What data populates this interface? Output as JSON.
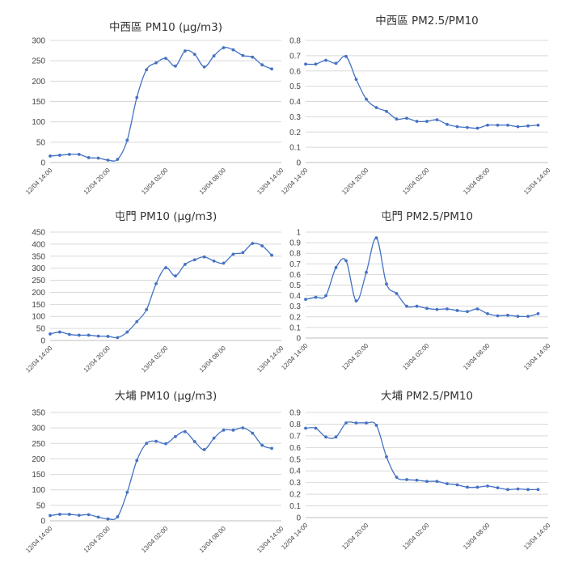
{
  "chart_data": [
    {
      "type": "line",
      "title": "中西區 PM10 (µg/m3)",
      "ylim": [
        0,
        300
      ],
      "yticks": [
        0,
        50,
        100,
        150,
        200,
        250,
        300
      ],
      "xlim": [
        0,
        24
      ],
      "xticks": [
        {
          "x": 0,
          "label": "12/04 14:00"
        },
        {
          "x": 6,
          "label": "12/04 20:00"
        },
        {
          "x": 12,
          "label": "13/04 02:00"
        },
        {
          "x": 18,
          "label": "13/04 08:00"
        },
        {
          "x": 24,
          "label": "13/04 14:00"
        }
      ],
      "grid": true,
      "color": "#4472c4",
      "x": [
        0,
        1,
        2,
        3,
        4,
        5,
        6,
        7,
        8,
        9,
        10,
        11,
        12,
        13,
        14,
        15,
        16,
        17,
        18,
        19,
        20,
        21,
        22,
        23
      ],
      "values": [
        16,
        18,
        20,
        20,
        12,
        11,
        6,
        8,
        55,
        160,
        228,
        245,
        256,
        237,
        274,
        266,
        235,
        262,
        282,
        277,
        263,
        259,
        240,
        230
      ]
    },
    {
      "type": "line",
      "title": "中西區 PM2.5/PM10",
      "ylim": [
        0,
        0.8
      ],
      "yticks": [
        0,
        0.1,
        0.2,
        0.3,
        0.4,
        0.5,
        0.6,
        0.7,
        0.8
      ],
      "xlim": [
        0,
        24
      ],
      "xticks": [
        {
          "x": 0,
          "label": "12/04 14:00"
        },
        {
          "x": 6,
          "label": "12/04 20:00"
        },
        {
          "x": 12,
          "label": "13/04 02:00"
        },
        {
          "x": 18,
          "label": "13/04 08:00"
        },
        {
          "x": 24,
          "label": "13/04 14:00"
        }
      ],
      "grid": true,
      "color": "#4472c4",
      "x": [
        0,
        1,
        2,
        3,
        4,
        5,
        6,
        7,
        8,
        9,
        10,
        11,
        12,
        13,
        14,
        15,
        16,
        17,
        18,
        19,
        20,
        21,
        22,
        23
      ],
      "values": [
        0.645,
        0.645,
        0.67,
        0.65,
        0.695,
        0.545,
        0.415,
        0.36,
        0.335,
        0.285,
        0.29,
        0.27,
        0.27,
        0.28,
        0.25,
        0.235,
        0.23,
        0.225,
        0.245,
        0.245,
        0.245,
        0.235,
        0.24,
        0.245
      ]
    },
    {
      "type": "line",
      "title": "屯門 PM10 (µg/m3)",
      "ylim": [
        0,
        450
      ],
      "yticks": [
        0,
        50,
        100,
        150,
        200,
        250,
        300,
        350,
        400,
        450
      ],
      "xlim": [
        0,
        24
      ],
      "xticks": [
        {
          "x": 0,
          "label": "12/04 14:00"
        },
        {
          "x": 6,
          "label": "12/04 20:00"
        },
        {
          "x": 12,
          "label": "13/04 02:00"
        },
        {
          "x": 18,
          "label": "13/04 08:00"
        },
        {
          "x": 24,
          "label": "13/04 14:00"
        }
      ],
      "grid": true,
      "color": "#4472c4",
      "x": [
        0,
        1,
        2,
        3,
        4,
        5,
        6,
        7,
        8,
        9,
        10,
        11,
        12,
        13,
        14,
        15,
        16,
        17,
        18,
        19,
        20,
        21,
        22,
        23
      ],
      "values": [
        27,
        35,
        25,
        22,
        22,
        18,
        17,
        12,
        35,
        78,
        128,
        236,
        302,
        268,
        316,
        335,
        347,
        330,
        321,
        358,
        365,
        403,
        393,
        354
      ]
    },
    {
      "type": "line",
      "title": "屯門 PM2.5/PM10",
      "ylim": [
        0,
        1
      ],
      "yticks": [
        0,
        0.1,
        0.2,
        0.3,
        0.4,
        0.5,
        0.6,
        0.7,
        0.8,
        0.9,
        1
      ],
      "xlim": [
        0,
        24
      ],
      "xticks": [
        {
          "x": 0,
          "label": "12/04 14:00"
        },
        {
          "x": 6,
          "label": "12/04 20:00"
        },
        {
          "x": 12,
          "label": "13/04 02:00"
        },
        {
          "x": 18,
          "label": "13/04 08:00"
        },
        {
          "x": 24,
          "label": "13/04 14:00"
        }
      ],
      "grid": true,
      "color": "#4472c4",
      "x": [
        0,
        1,
        2,
        3,
        4,
        5,
        6,
        7,
        8,
        9,
        10,
        11,
        12,
        13,
        14,
        15,
        16,
        17,
        18,
        19,
        20,
        21,
        22,
        23
      ],
      "values": [
        0.365,
        0.385,
        0.4,
        0.665,
        0.73,
        0.35,
        0.62,
        0.945,
        0.51,
        0.42,
        0.3,
        0.3,
        0.28,
        0.27,
        0.275,
        0.26,
        0.25,
        0.275,
        0.23,
        0.21,
        0.215,
        0.205,
        0.205,
        0.23
      ]
    },
    {
      "type": "line",
      "title": "大埔 PM10 (µg/m3)",
      "ylim": [
        0,
        350
      ],
      "yticks": [
        0,
        50,
        100,
        150,
        200,
        250,
        300,
        350
      ],
      "xlim": [
        0,
        24
      ],
      "xticks": [
        {
          "x": 0,
          "label": "12/04 14:00"
        },
        {
          "x": 6,
          "label": "12/04 20:00"
        },
        {
          "x": 12,
          "label": "13/04 02:00"
        },
        {
          "x": 18,
          "label": "13/04 08:00"
        },
        {
          "x": 24,
          "label": "13/04 14:00"
        }
      ],
      "grid": true,
      "color": "#4472c4",
      "x": [
        0,
        1,
        2,
        3,
        4,
        5,
        6,
        7,
        8,
        9,
        10,
        11,
        12,
        13,
        14,
        15,
        16,
        17,
        18,
        19,
        20,
        21,
        22,
        23
      ],
      "values": [
        17,
        21,
        21,
        18,
        20,
        12,
        6,
        13,
        92,
        195,
        250,
        257,
        249,
        272,
        288,
        256,
        230,
        267,
        293,
        293,
        300,
        283,
        244,
        234
      ]
    },
    {
      "type": "line",
      "title": "大埔 PM2.5/PM10",
      "ylim": [
        0,
        0.9
      ],
      "yticks": [
        0,
        0.1,
        0.2,
        0.3,
        0.4,
        0.5,
        0.6,
        0.7,
        0.8,
        0.9
      ],
      "xlim": [
        0,
        24
      ],
      "xticks": [
        {
          "x": 0,
          "label": "12/04 14:00"
        },
        {
          "x": 6,
          "label": "12/04 20:00"
        },
        {
          "x": 12,
          "label": "13/04 02:00"
        },
        {
          "x": 18,
          "label": "13/04 08:00"
        },
        {
          "x": 24,
          "label": "13/04 14:00"
        }
      ],
      "grid": true,
      "color": "#4472c4",
      "x": [
        0,
        1,
        2,
        3,
        4,
        5,
        6,
        7,
        8,
        9,
        10,
        11,
        12,
        13,
        14,
        15,
        16,
        17,
        18,
        19,
        20,
        21,
        22,
        23
      ],
      "values": [
        0.765,
        0.765,
        0.69,
        0.69,
        0.81,
        0.81,
        0.81,
        0.79,
        0.52,
        0.345,
        0.325,
        0.32,
        0.31,
        0.31,
        0.29,
        0.28,
        0.26,
        0.26,
        0.27,
        0.255,
        0.24,
        0.245,
        0.24,
        0.24
      ]
    }
  ]
}
